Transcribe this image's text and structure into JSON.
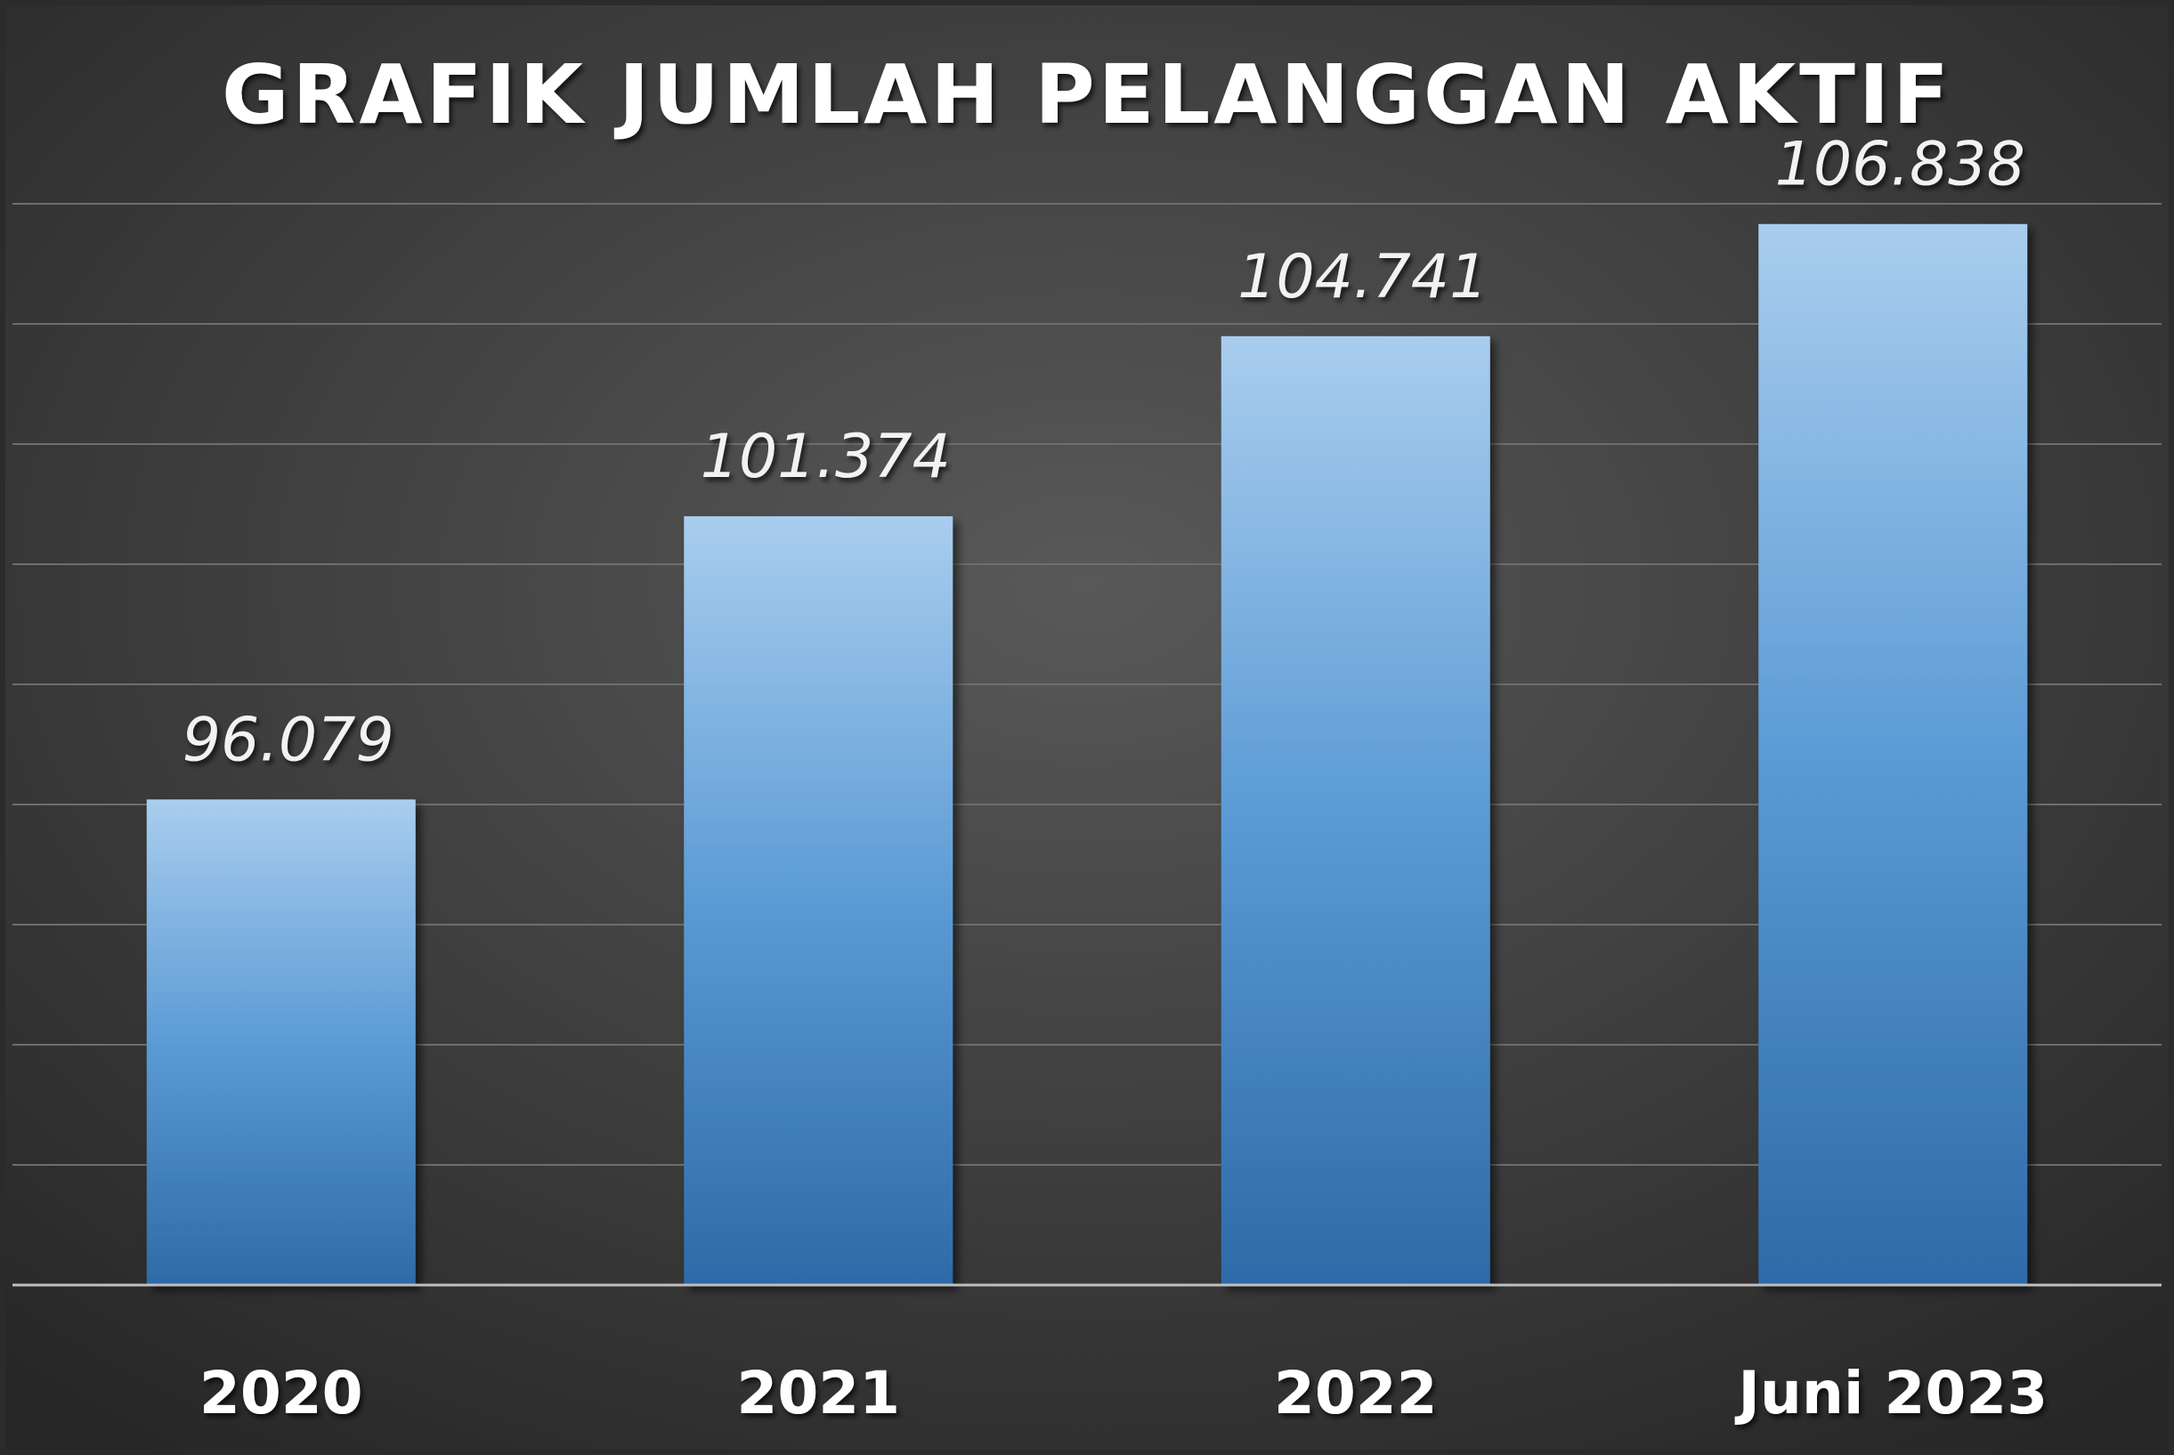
{
  "chart_data": {
    "type": "bar",
    "title": "GRAFIK JUMLAH PELANGGAN AKTIF",
    "categories": [
      "2020",
      "2021",
      "2022",
      "Juni 2023"
    ],
    "values": [
      96079,
      101374,
      104741,
      106838
    ],
    "value_labels": [
      "96.079",
      "101.374",
      "104.741",
      "106.838"
    ],
    "xlabel": "",
    "ylabel": "",
    "ylim": [
      87000,
      111000
    ],
    "grid": true,
    "legend": "none"
  },
  "colors": {
    "background_center": "#595959",
    "background_edge": "#262626",
    "gridline": "#6e6e6e",
    "axis": "#bfbfbf",
    "bar_top": "#a9cdee",
    "bar_mid": "#5b9bd5",
    "bar_bottom": "#2e6aa8"
  }
}
